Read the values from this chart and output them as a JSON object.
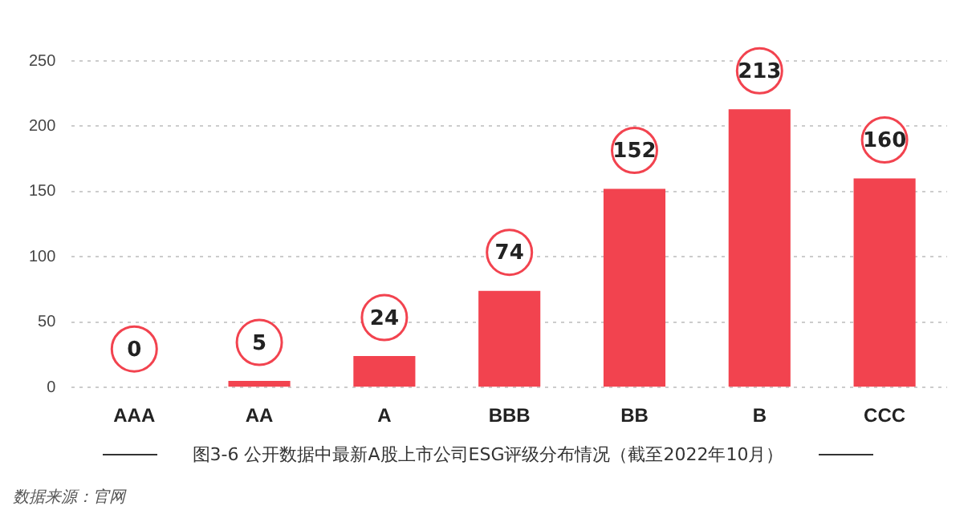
{
  "chart_data": {
    "type": "bar",
    "title": "图3-6  公开数据中最新A股上市公司ESG评级分布情况（截至2022年10月）",
    "categories": [
      "AAA",
      "AA",
      "A",
      "BBB",
      "BB",
      "B",
      "CCC"
    ],
    "values": [
      0,
      5,
      24,
      74,
      152,
      213,
      160
    ],
    "color": "#f2434f",
    "ylim": [
      0,
      250
    ],
    "yticks": [
      0,
      50,
      100,
      150,
      200,
      250
    ],
    "grid": "y",
    "data_labels": true,
    "legend": false,
    "annotations": [
      "数据来源：官网"
    ]
  }
}
